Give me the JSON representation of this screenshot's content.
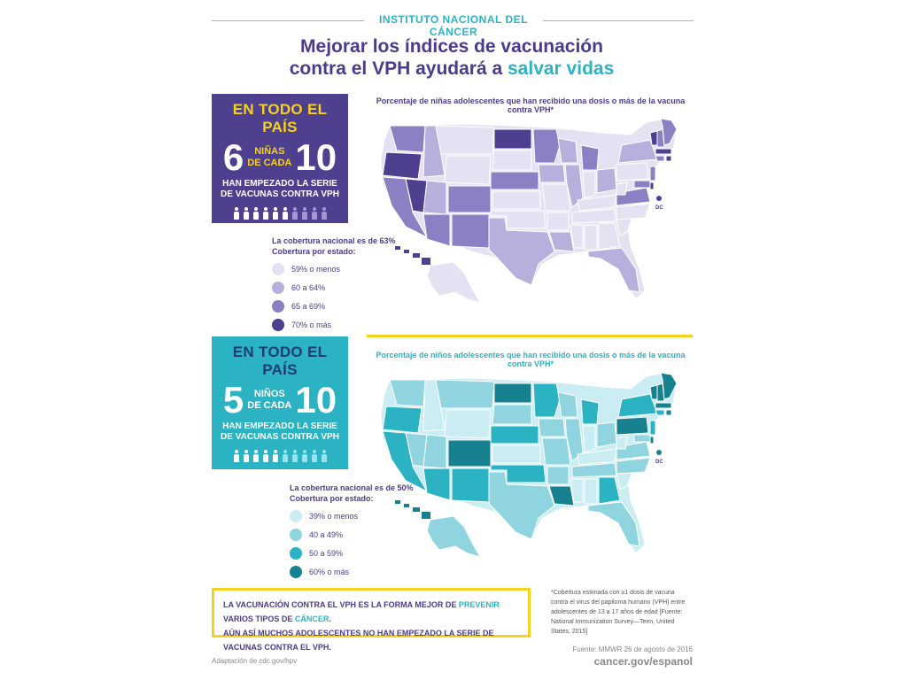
{
  "header": {
    "org": "INSTITUTO NACIONAL DEL CÁNCER",
    "title_line1": "Mejorar los índices de vacunación",
    "title_line2_pre": "contra el VPH ayudará a ",
    "title_line2_hl": "salvar vidas"
  },
  "girls": {
    "title": "EN TODO EL PAÍS",
    "big_left": "6",
    "mid_line1": "NIÑAS",
    "mid_line2": "DE CADA",
    "big_right": "10",
    "sub_line1": "HAN EMPEZADO LA SERIE",
    "sub_line2": "DE VACUNAS CONTRA VPH",
    "figures_on": 6,
    "figures_total": 10,
    "map_caption": "Porcentaje de niñas adolescentes que han recibido una dosis o más de la vacuna contra VPH*",
    "legend_title_line1": "La cobertura nacional es de 63%",
    "legend_title_line2": "Cobertura por estado:",
    "legend": [
      {
        "label": "59% o menos",
        "color": "#e4e2f2"
      },
      {
        "label": "60 a 64%",
        "color": "#b8b0dc"
      },
      {
        "label": "65 a 69%",
        "color": "#8c80c4"
      },
      {
        "label": "70% o más",
        "color": "#4e3f8f"
      }
    ]
  },
  "boys": {
    "title": "EN TODO EL PAÍS",
    "big_left": "5",
    "mid_line1": "NIÑOS",
    "mid_line2": "DE CADA",
    "big_right": "10",
    "sub_line1": "HAN EMPEZADO LA SERIE",
    "sub_line2": "DE VACUNAS CONTRA VPH",
    "figures_on": 5,
    "figures_total": 10,
    "map_caption": "Porcentaje de niños adolescentes que han recibido una dosis o más de la vacuna contra VPH*",
    "legend_title_line1": "La cobertura nacional es de 50%",
    "legend_title_line2": "Cobertura por estado:",
    "legend": [
      {
        "label": "39% o menos",
        "color": "#c9edf2"
      },
      {
        "label": "40 a 49%",
        "color": "#8fd4df"
      },
      {
        "label": "50 a 59%",
        "color": "#2bb3c4"
      },
      {
        "label": "60% o más",
        "color": "#17818f"
      }
    ]
  },
  "map_dc_label": "DC",
  "callout": {
    "l1_a": "LA VACUNACIÓN CONTRA EL VPH ES LA FORMA MEJOR DE ",
    "l1_em1": "PREVENIR",
    "l1_b": " VARIOS TIPOS DE ",
    "l1_em2": "CÁNCER",
    "l1_c": ".",
    "l2": "AÚN ASÍ MUCHOS ADOLESCENTES NO HAN EMPEZADO LA SERIE DE VACUNAS CONTRA EL VPH."
  },
  "footnote": "*Cobertura estimada con ≥1 dosis de vacuna contra el virus del papiloma humano (VPH) entre adolescentes de 13 a 17 años de edad [Fuente: National Immunization Survey—Teen, United States, 2015]",
  "source": "Fuente: MMWR 26 de agosto de 2016",
  "url": "cancer.gov/espanol",
  "adaptation": "Adaptación de cdc.gov/hpv"
}
